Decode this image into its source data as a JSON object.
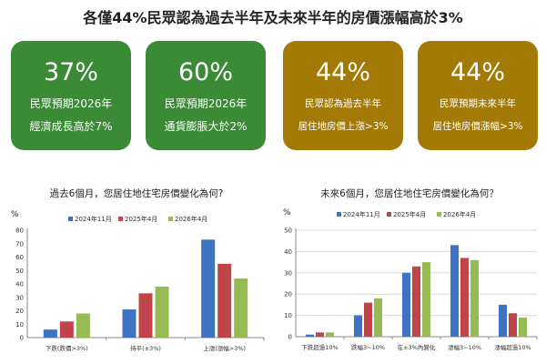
{
  "title": "各僅44%民眾認為過去半年及未來半年的房價漲幅高於3%",
  "cards": [
    {
      "pct": "37%",
      "line1": "民眾預期2026年",
      "line2": "經濟成長高於7%",
      "color": "#3a8a36"
    },
    {
      "pct": "60%",
      "line1": "民眾預期2026年",
      "line2": "通貨膨脹大於2%",
      "color": "#3a8a36"
    },
    {
      "pct": "44%",
      "line1": "民眾認為過去半年",
      "line2": "居住地房價上漲>3%",
      "color": "#a37a05"
    },
    {
      "pct": "44%",
      "line1": "民眾預期未來半年",
      "line2": "居住地房價漲幅>3%",
      "color": "#a37a05"
    }
  ],
  "colors": {
    "s2024_11": "#3e73c4",
    "s2025_04": "#c0454a",
    "s2026_04": "#97bb53"
  },
  "chart_data": [
    {
      "type": "bar",
      "title": "過去6個月，您居住地住宅房價變化為何?",
      "ylabel": "%",
      "ylim": [
        0,
        80
      ],
      "yticks": [
        "0",
        "10",
        "20",
        "30",
        "40",
        "50",
        "60",
        "70",
        "80"
      ],
      "categories": [
        "下跌(跌價>3%)",
        "持平(±3%)",
        "上漲(漲幅>3%)"
      ],
      "series": [
        {
          "name": "2024年11月",
          "values": [
            6,
            21,
            73
          ]
        },
        {
          "name": "2025年4月",
          "values": [
            12,
            33,
            55
          ]
        },
        {
          "name": "2026年4月",
          "values": [
            18,
            38,
            44
          ]
        }
      ],
      "legend": "top",
      "grid": false
    },
    {
      "type": "bar",
      "title": "未來6個月，您居住地住宅房價變化為何？",
      "ylabel": "%",
      "ylim": [
        0,
        50
      ],
      "yticks": [
        "0",
        "10",
        "20",
        "30",
        "40",
        "50"
      ],
      "categories": [
        "下跌超過10%",
        "跌幅3~10%",
        "在±3%內變化",
        "漲幅3~10%",
        "漲幅超過10%"
      ],
      "series": [
        {
          "name": "2024年11月",
          "values": [
            1,
            10,
            30,
            43,
            15
          ]
        },
        {
          "name": "2025年4月",
          "values": [
            2,
            16,
            33,
            37,
            11
          ]
        },
        {
          "name": "2026年4月",
          "values": [
            2,
            18,
            35,
            36,
            9
          ]
        }
      ],
      "legend": "top",
      "grid": true
    }
  ]
}
